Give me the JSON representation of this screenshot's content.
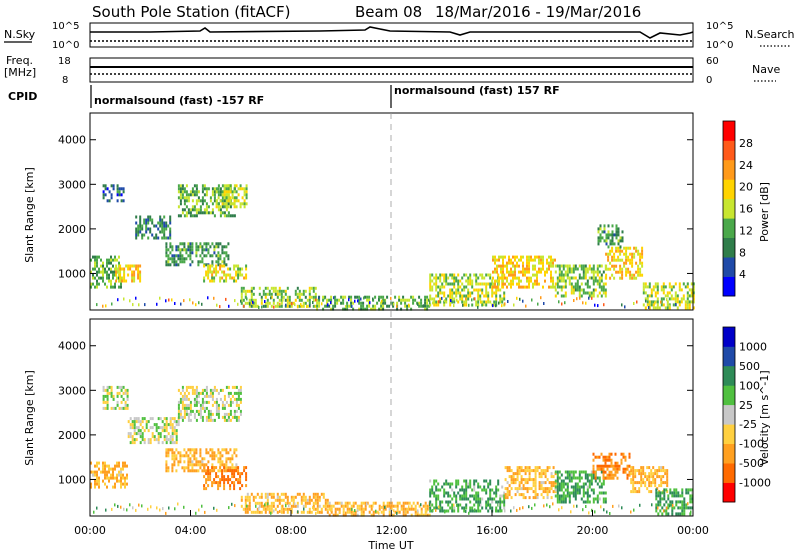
{
  "header": {
    "station": "South Pole Station (fitACF)",
    "beam": "Beam 08",
    "dates": "18/Mar/2016 - 19/Mar/2016"
  },
  "panels": {
    "nsky": {
      "label": "N.Sky",
      "tick_hi": "10^5",
      "tick_lo": "10^0"
    },
    "nsearch": {
      "label": "N.Search",
      "tick_hi": "10^5",
      "tick_lo": "10^0"
    },
    "freq": {
      "label_line1": "Freq.",
      "label_line2": "[MHz]",
      "tick_hi": "18",
      "tick_lo": "8"
    },
    "nave": {
      "label": "Nave",
      "tick_hi": "60",
      "tick_lo": "0"
    },
    "cpid": {
      "label": "CPID",
      "seg1": "normalsound (fast) -157 RF",
      "seg2": "normalsound (fast) 157 RF"
    }
  },
  "colors": {
    "power": [
      "#0000ff",
      "#1f4aa8",
      "#2f7d4a",
      "#4aa84a",
      "#c8e630",
      "#ffd400",
      "#ff9a1a",
      "#ff5a1a",
      "#ff0000"
    ],
    "velocity": [
      "#ff0000",
      "#ff6a00",
      "#ffa020",
      "#ffd040",
      "#c8c8c8",
      "#50c040",
      "#2e8b57",
      "#1f4aa8",
      "#0000c8"
    ]
  },
  "chart_data": [
    {
      "type": "heatmap",
      "title": "",
      "xlabel": "",
      "ylabel": "Slant Range [km]",
      "x_unit": "hours UT",
      "xlim": [
        0,
        24
      ],
      "ylim": [
        180,
        4600
      ],
      "yticks": [
        1000,
        2000,
        3000,
        4000
      ],
      "colorbar": {
        "label": "Power [dB]",
        "range": [
          0,
          32
        ],
        "ticks": [
          "4",
          "8",
          "12",
          "16",
          "20",
          "24",
          "28"
        ]
      },
      "regions": [
        {
          "t": [
            0.0,
            1.2
          ],
          "r": [
            700,
            1400
          ],
          "v": 14
        },
        {
          "t": [
            0.5,
            1.3
          ],
          "r": [
            2600,
            3000
          ],
          "v": 8
        },
        {
          "t": [
            1.0,
            2.0
          ],
          "r": [
            800,
            1200
          ],
          "v": 22
        },
        {
          "t": [
            1.8,
            3.2
          ],
          "r": [
            1800,
            2300
          ],
          "v": 10
        },
        {
          "t": [
            3.0,
            5.5
          ],
          "r": [
            1200,
            1700
          ],
          "v": 12
        },
        {
          "t": [
            3.5,
            5.8
          ],
          "r": [
            2300,
            3000
          ],
          "v": 14
        },
        {
          "t": [
            4.5,
            6.2
          ],
          "r": [
            800,
            1200
          ],
          "v": 20
        },
        {
          "t": [
            5.0,
            6.2
          ],
          "r": [
            2500,
            3000
          ],
          "v": 18
        },
        {
          "t": [
            6.0,
            9.0
          ],
          "r": [
            250,
            700
          ],
          "v": 16
        },
        {
          "t": [
            9.0,
            13.5
          ],
          "r": [
            230,
            500
          ],
          "v": 14
        },
        {
          "t": [
            13.5,
            16.5
          ],
          "r": [
            300,
            1000
          ],
          "v": 18
        },
        {
          "t": [
            16.0,
            18.5
          ],
          "r": [
            700,
            1400
          ],
          "v": 22
        },
        {
          "t": [
            18.5,
            20.5
          ],
          "r": [
            500,
            1200
          ],
          "v": 16
        },
        {
          "t": [
            20.5,
            22.0
          ],
          "r": [
            900,
            1600
          ],
          "v": 22
        },
        {
          "t": [
            20.2,
            21.2
          ],
          "r": [
            1600,
            2100
          ],
          "v": 12
        },
        {
          "t": [
            22.0,
            24.0
          ],
          "r": [
            250,
            800
          ],
          "v": 18
        }
      ]
    },
    {
      "type": "heatmap",
      "title": "",
      "xlabel": "Time UT",
      "ylabel": "Slant Range [km]",
      "x_unit": "hours UT",
      "xlim": [
        0,
        24
      ],
      "ylim": [
        180,
        4600
      ],
      "yticks": [
        1000,
        2000,
        3000,
        4000
      ],
      "xticks": [
        "00:00",
        "04:00",
        "08:00",
        "12:00",
        "16:00",
        "20:00",
        "00:00"
      ],
      "colorbar": {
        "label": "Velocity [m s^-1]",
        "ticks": [
          "-1000",
          "-500",
          "-100",
          "-25",
          "25",
          "100",
          "500",
          "1000"
        ]
      },
      "regions": [
        {
          "t": [
            0.0,
            1.5
          ],
          "r": [
            800,
            1400
          ],
          "v": -100
        },
        {
          "t": [
            0.5,
            1.5
          ],
          "r": [
            2600,
            3100
          ],
          "v": 0
        },
        {
          "t": [
            1.5,
            3.5
          ],
          "r": [
            1800,
            2400
          ],
          "v": 0
        },
        {
          "t": [
            3.0,
            5.8
          ],
          "r": [
            1200,
            1700
          ],
          "v": -100
        },
        {
          "t": [
            3.5,
            6.0
          ],
          "r": [
            2300,
            3100
          ],
          "v": 0
        },
        {
          "t": [
            4.5,
            6.2
          ],
          "r": [
            800,
            1300
          ],
          "v": -500
        },
        {
          "t": [
            6.0,
            9.5
          ],
          "r": [
            250,
            700
          ],
          "v": -100
        },
        {
          "t": [
            9.5,
            13.5
          ],
          "r": [
            230,
            500
          ],
          "v": -100
        },
        {
          "t": [
            13.5,
            16.5
          ],
          "r": [
            300,
            1000
          ],
          "v": 100
        },
        {
          "t": [
            16.5,
            18.5
          ],
          "r": [
            600,
            1300
          ],
          "v": -100
        },
        {
          "t": [
            18.5,
            20.5
          ],
          "r": [
            500,
            1200
          ],
          "v": 100
        },
        {
          "t": [
            20.0,
            21.5
          ],
          "r": [
            1000,
            1600
          ],
          "v": -500
        },
        {
          "t": [
            21.5,
            23.0
          ],
          "r": [
            700,
            1300
          ],
          "v": -100
        },
        {
          "t": [
            22.5,
            24.0
          ],
          "r": [
            250,
            800
          ],
          "v": 100
        }
      ]
    }
  ]
}
